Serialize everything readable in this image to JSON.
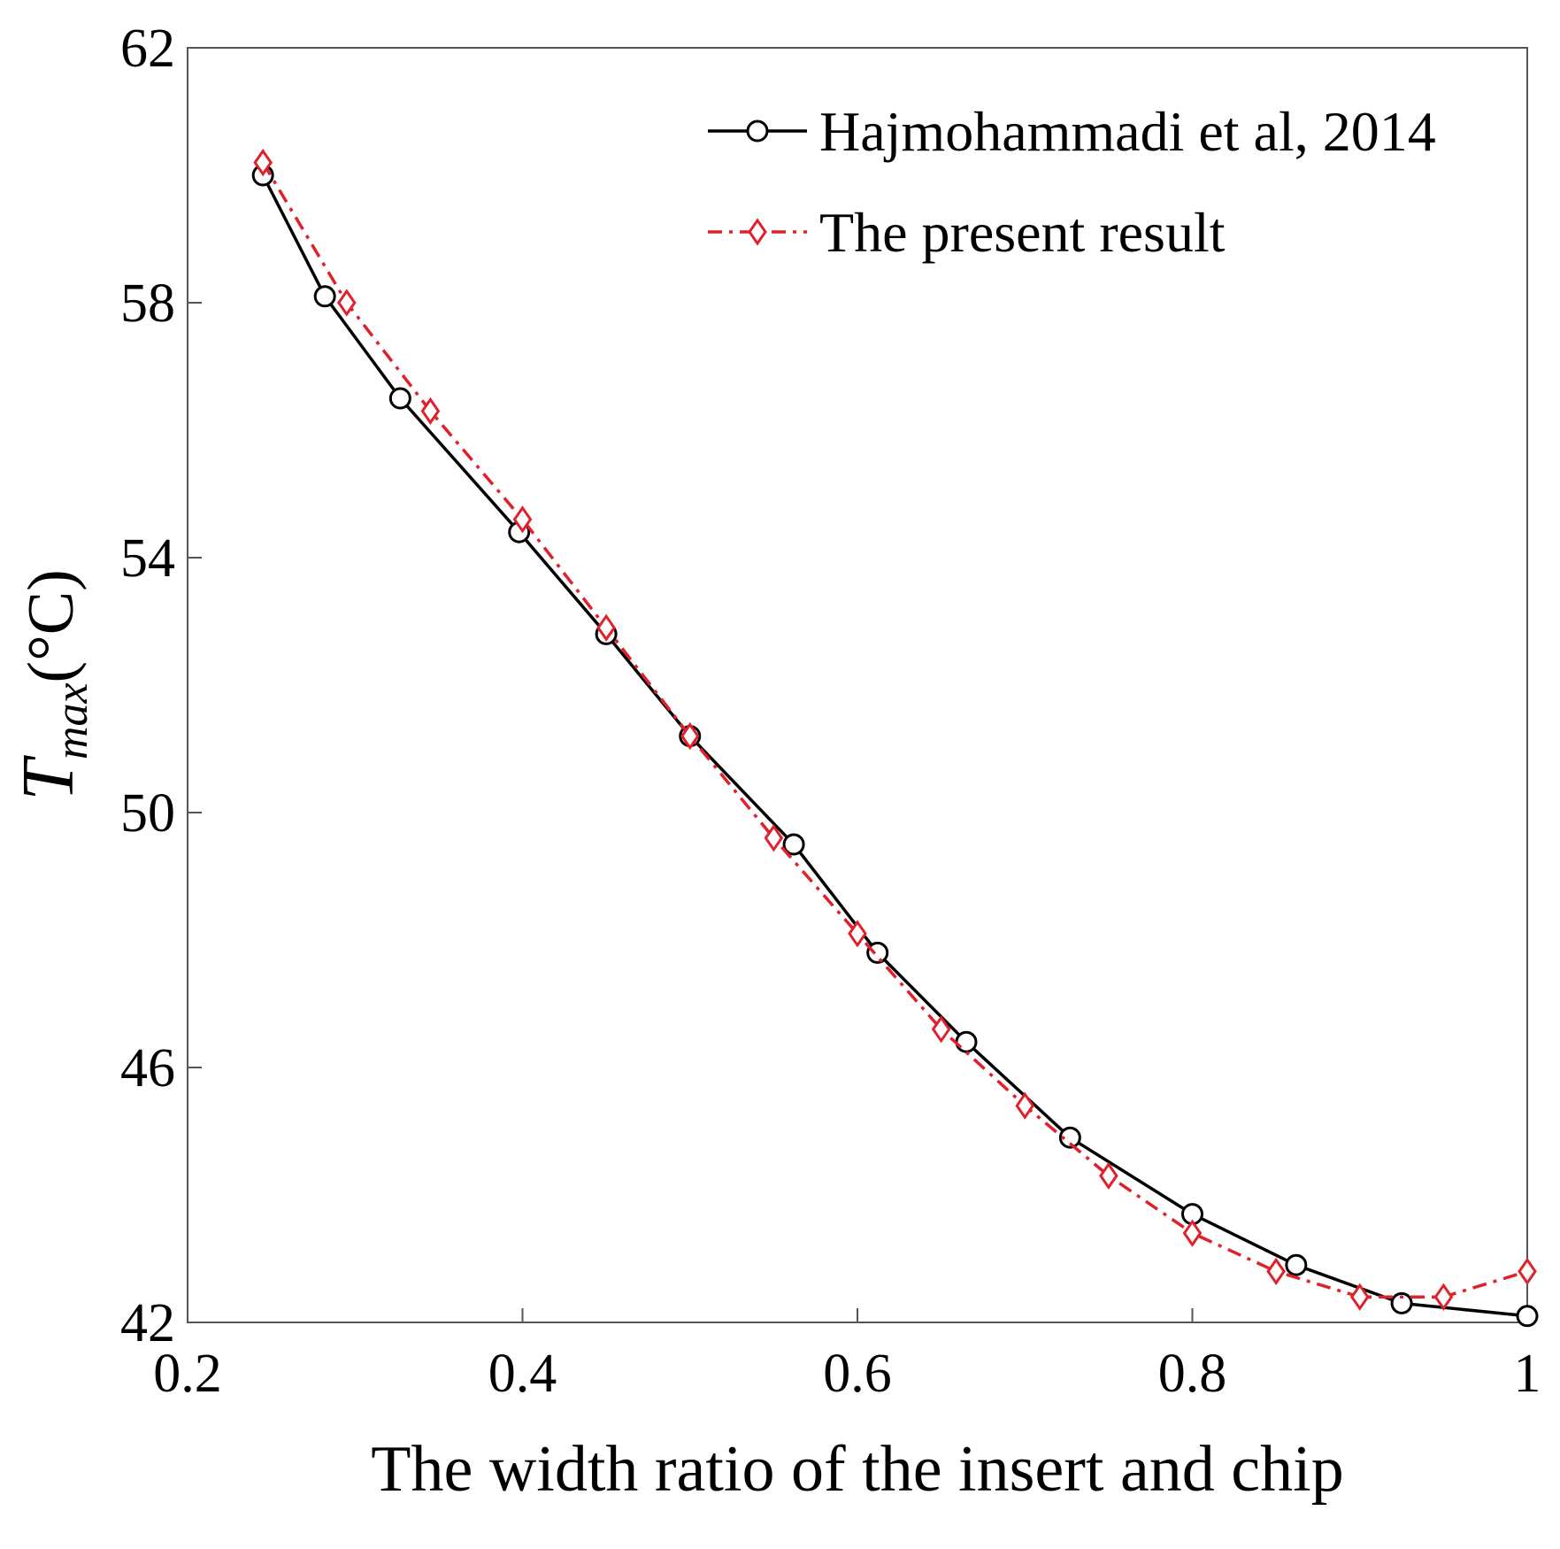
{
  "chart_data": {
    "type": "line",
    "title": "",
    "xlabel": "The width ratio of the insert and chip",
    "ylabel": {
      "main": "T",
      "subscript": "max",
      "unit": "(°C)"
    },
    "xlim": [
      0.2,
      1.0
    ],
    "ylim": [
      42,
      62
    ],
    "xticks": [
      0.2,
      0.4,
      0.6,
      0.8,
      1.0
    ],
    "xtick_labels": [
      "0.2",
      "0.4",
      "0.6",
      "0.8",
      "1"
    ],
    "yticks": [
      42,
      46,
      50,
      54,
      58,
      62
    ],
    "ytick_labels": [
      "42",
      "46",
      "50",
      "54",
      "58",
      "62"
    ],
    "grid": false,
    "legend_position": "top-right",
    "series": [
      {
        "name": "Hajmohammadi et al, 2014",
        "color": "#000000",
        "line_style": "solid",
        "marker": "circle",
        "x": [
          0.245,
          0.282,
          0.327,
          0.398,
          0.45,
          0.5,
          0.562,
          0.612,
          0.665,
          0.727,
          0.8,
          0.862,
          0.925,
          1.0
        ],
        "y": [
          60.0,
          58.1,
          56.5,
          54.4,
          52.8,
          51.2,
          49.5,
          47.8,
          46.4,
          44.9,
          43.7,
          42.9,
          42.3,
          42.1
        ]
      },
      {
        "name": "The present result",
        "color": "#e0202a",
        "line_style": "dashdot",
        "marker": "diamond",
        "x": [
          0.245,
          0.295,
          0.345,
          0.4,
          0.45,
          0.5,
          0.55,
          0.6,
          0.65,
          0.7,
          0.75,
          0.8,
          0.85,
          0.9,
          0.95,
          1.0
        ],
        "y": [
          60.2,
          58.0,
          56.3,
          54.6,
          52.9,
          51.2,
          49.6,
          48.1,
          46.6,
          45.4,
          44.3,
          43.4,
          42.8,
          42.4,
          42.4,
          42.8
        ]
      }
    ]
  }
}
